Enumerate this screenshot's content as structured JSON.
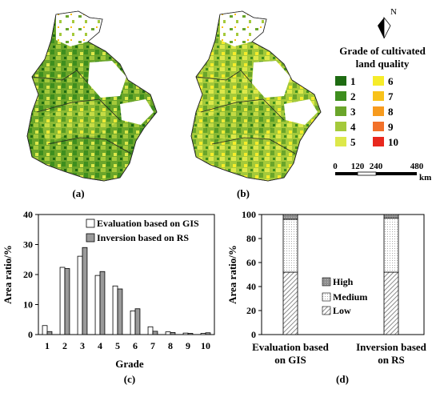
{
  "panel_labels": {
    "a": "(a)",
    "b": "(b)",
    "c": "(c)",
    "d": "(d)"
  },
  "map_legend": {
    "north": "N",
    "title_line1": "Grade of cultivated",
    "title_line2": "land quality",
    "grades": [
      {
        "label": "1",
        "color": "#1e6b12"
      },
      {
        "label": "2",
        "color": "#3e8e1e"
      },
      {
        "label": "3",
        "color": "#6aa52a"
      },
      {
        "label": "4",
        "color": "#a4c93a"
      },
      {
        "label": "5",
        "color": "#dde84a"
      },
      {
        "label": "6",
        "color": "#f6ec2a"
      },
      {
        "label": "7",
        "color": "#f8c21a"
      },
      {
        "label": "8",
        "color": "#f79b1e"
      },
      {
        "label": "9",
        "color": "#f2712a"
      },
      {
        "label": "10",
        "color": "#e8281e"
      }
    ],
    "scale_ticks": [
      "0",
      "120",
      "240",
      "480"
    ],
    "scale_unit": "km"
  },
  "chart_data": [
    {
      "type": "bar",
      "panel": "(c)",
      "categories": [
        "1",
        "2",
        "3",
        "4",
        "5",
        "6",
        "7",
        "8",
        "9",
        "10"
      ],
      "series": [
        {
          "name": "Evaluation based on GIS",
          "values": [
            3.0,
            22.4,
            26.1,
            19.7,
            16.2,
            7.9,
            2.6,
            0.9,
            0.5,
            0.4
          ],
          "color": "#ffffff"
        },
        {
          "name": "Inversion based on RS",
          "values": [
            1.0,
            22.0,
            29.0,
            21.0,
            15.2,
            8.6,
            1.1,
            0.7,
            0.4,
            0.6
          ],
          "color": "#9a9a9a"
        }
      ],
      "xlabel": "Grade",
      "ylabel": "Area ratio/%",
      "ylim": [
        0,
        40
      ],
      "yticks": [
        "0",
        "10",
        "20",
        "30",
        "40"
      ],
      "legend_position": "top-right"
    },
    {
      "type": "bar",
      "stacked": true,
      "panel": "(d)",
      "categories": [
        "Evaluation based on GIS",
        "Inversion based on RS"
      ],
      "series": [
        {
          "name": "Low",
          "values": [
            52,
            52
          ],
          "pattern": "hatch"
        },
        {
          "name": "Medium",
          "values": [
            44,
            45
          ],
          "pattern": "dots"
        },
        {
          "name": "High",
          "values": [
            4,
            3
          ],
          "pattern": "gray"
        }
      ],
      "ylabel": "Area ratio/%",
      "ylim": [
        0,
        100
      ],
      "yticks": [
        "0",
        "20",
        "40",
        "60",
        "80",
        "100"
      ],
      "legend_position": "center"
    }
  ]
}
